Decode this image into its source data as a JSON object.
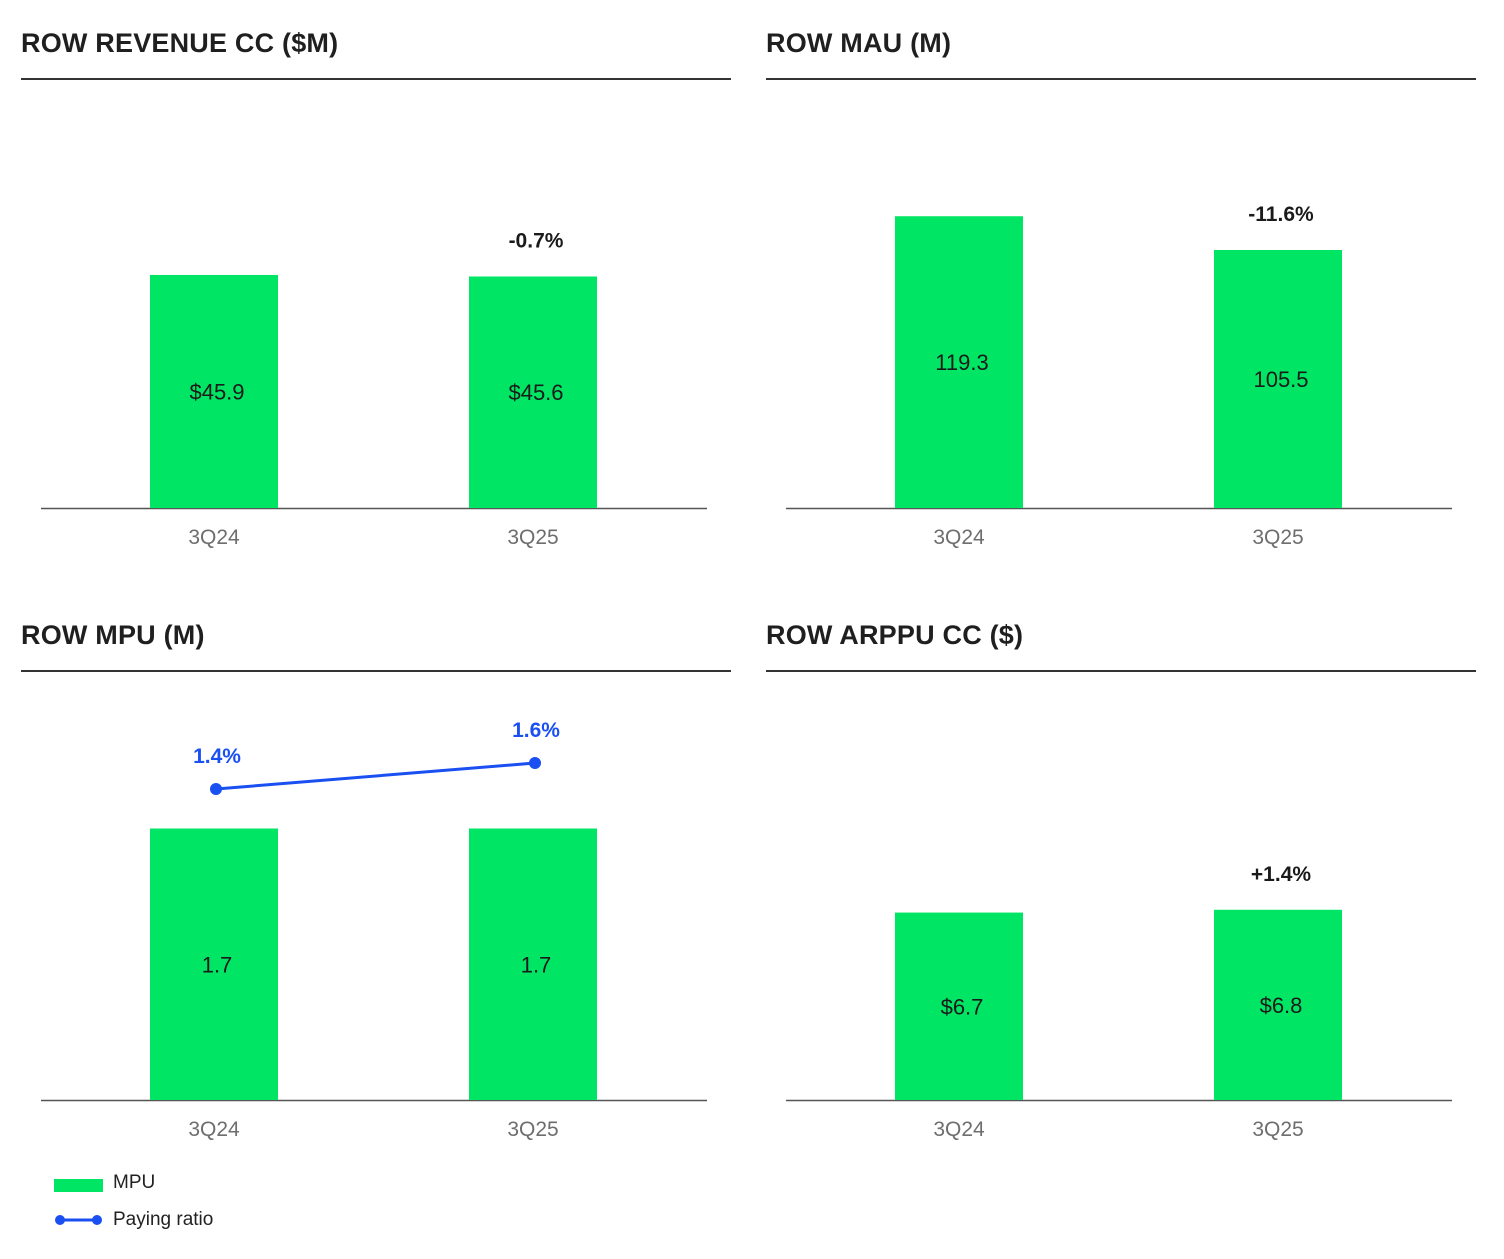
{
  "colors": {
    "bar": "#00e564",
    "line": "#1a4ff2",
    "axis": "#555555",
    "tick": "#6e6e6e",
    "text": "#1a1a1a"
  },
  "chart_data": [
    {
      "type": "bar",
      "title": "ROW REVENUE CC ($M)",
      "categories": [
        "3Q24",
        "3Q25"
      ],
      "series": [
        {
          "values": [
            45.9,
            45.6
          ]
        }
      ],
      "data_labels": [
        "$45.9",
        "$45.6"
      ],
      "change_label": "-0.7%",
      "ylim": [
        0,
        84.3
      ],
      "grid": false
    },
    {
      "type": "bar",
      "title": "ROW MAU (M)",
      "categories": [
        "3Q24",
        "3Q25"
      ],
      "series": [
        {
          "values": [
            119.3,
            105.5
          ]
        }
      ],
      "data_labels": [
        "119.3",
        "105.5"
      ],
      "change_label": "-11.6%",
      "ylim": [
        0,
        175
      ],
      "grid": false
    },
    {
      "type": "bar",
      "title": "ROW MPU (M)",
      "categories": [
        "3Q24",
        "3Q25"
      ],
      "series": [
        {
          "name": "MPU",
          "values": [
            1.7,
            1.7
          ]
        }
      ],
      "data_labels": [
        "1.7",
        "1.7"
      ],
      "line_series": {
        "name": "Paying ratio",
        "values": [
          1.4,
          1.6
        ],
        "labels": [
          "1.4%",
          "1.6%"
        ]
      },
      "change_label": "",
      "ylim": [
        0,
        2.68
      ],
      "grid": false,
      "legend": {
        "placement": "bottom-left",
        "items": [
          {
            "label": "MPU",
            "kind": "bar"
          },
          {
            "label": "Paying ratio",
            "kind": "line"
          }
        ]
      }
    },
    {
      "type": "bar",
      "title": "ROW ARPPU CC ($)",
      "categories": [
        "3Q24",
        "3Q25"
      ],
      "series": [
        {
          "values": [
            6.7,
            6.8
          ]
        }
      ],
      "data_labels": [
        "$6.7",
        "$6.8"
      ],
      "change_label": "+1.4%",
      "ylim": [
        0,
        15.3
      ],
      "grid": false
    }
  ]
}
